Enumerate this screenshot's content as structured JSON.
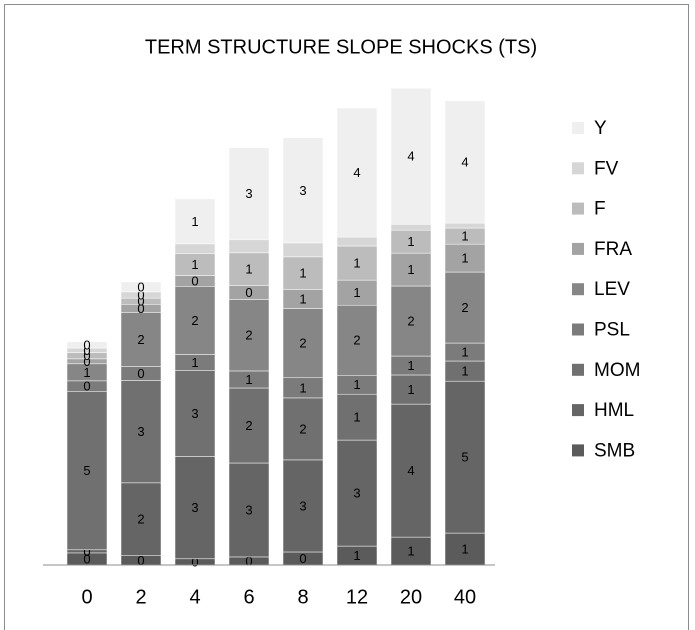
{
  "chart_data": {
    "type": "stacked_bar",
    "title": "TERM STRUCTURE SLOPE SHOCKS (TS)",
    "categories": [
      "0",
      "2",
      "4",
      "6",
      "8",
      "12",
      "20",
      "40"
    ],
    "series": [
      {
        "name": "SMB",
        "color": "#5b5b5b",
        "values": [
          0.39,
          0.3,
          0.2,
          0.26,
          0.42,
          0.61,
          0.9,
          1.03
        ],
        "value_labels": [
          "0",
          "0",
          "0",
          "0",
          "0",
          "1",
          "1",
          "1"
        ]
      },
      {
        "name": "HML",
        "color": "#656565",
        "values": [
          0.1,
          2.35,
          3.3,
          3.03,
          2.97,
          3.42,
          4.29,
          4.9
        ],
        "value_labels": [
          "0",
          "2",
          "3",
          "3",
          "3",
          "3",
          "4",
          "5"
        ]
      },
      {
        "name": "MOM",
        "color": "#707070",
        "values": [
          5.1,
          3.3,
          2.77,
          2.42,
          2.0,
          1.48,
          0.94,
          0.65
        ],
        "value_labels": [
          "5",
          "3",
          "3",
          "2",
          "2",
          "1",
          "1",
          "1"
        ]
      },
      {
        "name": "PSL",
        "color": "#7b7b7b",
        "values": [
          0.35,
          0.45,
          0.52,
          0.55,
          0.65,
          0.61,
          0.61,
          0.58
        ],
        "value_labels": [
          "0",
          "0",
          "1",
          "1",
          "1",
          "1",
          "1",
          "1"
        ]
      },
      {
        "name": "LEV",
        "color": "#868686",
        "values": [
          0.55,
          1.75,
          2.2,
          2.3,
          2.23,
          2.26,
          2.26,
          2.29
        ],
        "value_labels": [
          "1",
          "2",
          "2",
          "2",
          "2",
          "2",
          "2",
          "2"
        ]
      },
      {
        "name": "FRA",
        "color": "#a3a3a3",
        "values": [
          0.16,
          0.26,
          0.35,
          0.45,
          0.61,
          0.81,
          1.06,
          0.9
        ],
        "value_labels": [
          "0",
          "0",
          "0",
          "0",
          "1",
          "1",
          "1",
          "1"
        ]
      },
      {
        "name": "F",
        "color": "#bcbcbc",
        "values": [
          0.2,
          0.2,
          0.7,
          1.06,
          1.06,
          1.1,
          0.74,
          0.52
        ],
        "value_labels": [
          "0",
          "0",
          "1",
          "1",
          "1",
          "1",
          "1",
          "1"
        ]
      },
      {
        "name": "FV",
        "color": "#d6d6d6",
        "values": [
          0.15,
          0.2,
          0.32,
          0.42,
          0.45,
          0.29,
          0.19,
          0.16
        ],
        "value_labels": [
          "0",
          "0",
          null,
          null,
          null,
          null,
          null,
          null
        ]
      },
      {
        "name": "Y",
        "color": "#efefef",
        "values": [
          0.2,
          0.32,
          1.45,
          2.97,
          3.39,
          4.16,
          4.39,
          3.94
        ],
        "value_labels": [
          "0",
          "0",
          "1",
          "3",
          "3",
          "4",
          "4",
          "4"
        ]
      }
    ]
  }
}
